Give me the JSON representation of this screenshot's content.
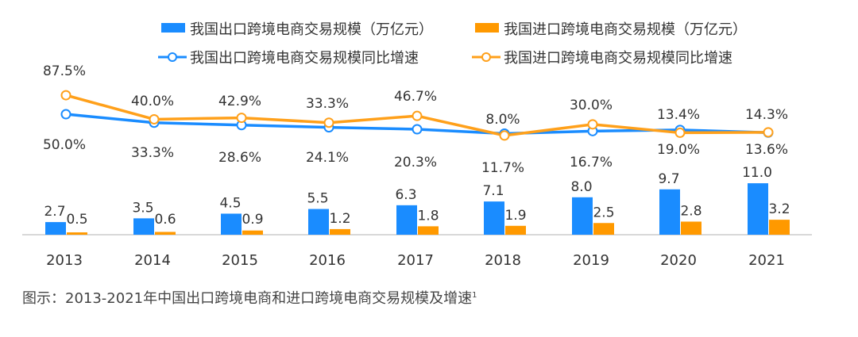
{
  "chart_data": {
    "type": "bar",
    "categories": [
      "2013",
      "2014",
      "2015",
      "2016",
      "2017",
      "2018",
      "2019",
      "2020",
      "2021"
    ],
    "series": [
      {
        "name": "我国出口跨境电商交易规模（万亿元）",
        "kind": "bar",
        "axis": "left",
        "values": [
          2.7,
          3.5,
          4.5,
          5.5,
          6.3,
          7.1,
          8.0,
          9.7,
          11.0
        ],
        "labels": [
          "2.7",
          "3.5",
          "4.5",
          "5.5",
          "6.3",
          "7.1",
          "8.0",
          "9.7",
          "11.0"
        ]
      },
      {
        "name": "我国进口跨境电商交易规模（万亿元）",
        "kind": "bar",
        "axis": "left",
        "values": [
          0.5,
          0.6,
          0.9,
          1.2,
          1.8,
          1.9,
          2.5,
          2.8,
          3.2
        ],
        "labels": [
          "0.5",
          "0.6",
          "0.9",
          "1.2",
          "1.8",
          "1.9",
          "2.5",
          "2.8",
          "3.2"
        ]
      },
      {
        "name": "我国出口跨境电商交易规模同比增速",
        "kind": "line",
        "axis": "right",
        "values": [
          50.0,
          33.3,
          28.6,
          24.1,
          20.3,
          11.7,
          16.7,
          19.0,
          13.6
        ],
        "labels": [
          "50.0%",
          "33.3%",
          "28.6%",
          "24.1%",
          "20.3%",
          "11.7%",
          "16.7%",
          "19.0%",
          "13.6%"
        ]
      },
      {
        "name": "我国进口跨境电商交易规模同比增速",
        "kind": "line",
        "axis": "right",
        "values": [
          87.5,
          40.0,
          42.9,
          33.3,
          46.7,
          8.0,
          30.0,
          13.4,
          14.3
        ],
        "labels": [
          "87.5%",
          "40.0%",
          "42.9%",
          "33.3%",
          "46.7%",
          "8.0%",
          "30.0%",
          "13.4%",
          "14.3%"
        ]
      }
    ],
    "colors": {
      "export": "#1a8cff",
      "import": "#ff9900",
      "export_line": "#1a8cff",
      "import_line": "#ffa01a",
      "axis": "#cccccc",
      "text": "#333333"
    },
    "grid": false,
    "legend_position": "top-center"
  },
  "caption": {
    "text": "图示：2013-2021年中国出口跨境电商和进口跨境电商交易规模及增速",
    "superscript": "1"
  }
}
